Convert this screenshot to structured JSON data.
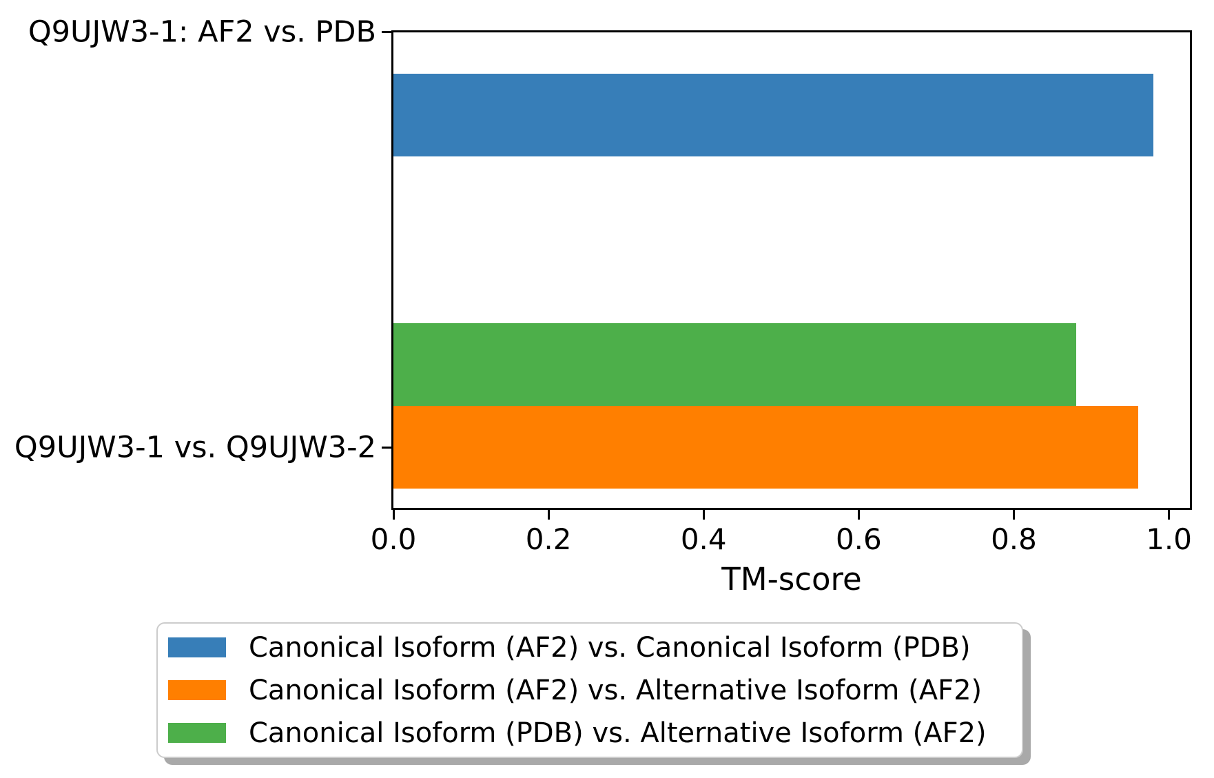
{
  "figure": {
    "background": "#ffffff",
    "axis_color": "#000000",
    "legend_border_color": "#cccccc",
    "legend_shadow_color": "#a9a9a9"
  },
  "chart_data": {
    "type": "bar",
    "orientation": "horizontal",
    "title": "",
    "xlabel": "TM-score",
    "ylabel": "",
    "categories": [
      "Q9UJW3-1: AF2 vs. PDB",
      "Q9UJW3-1 vs. Q9UJW3-2"
    ],
    "series": [
      {
        "name": "Canonical Isoform (AF2) vs. Canonical Isoform (PDB)",
        "color": "#377eb8",
        "values": [
          0.98,
          null
        ]
      },
      {
        "name": "Canonical Isoform (AF2) vs. Alternative Isoform (AF2)",
        "color": "#ff7f00",
        "values": [
          null,
          0.96
        ]
      },
      {
        "name": "Canonical Isoform (PDB) vs. Alternative Isoform (AF2)",
        "color": "#4daf4a",
        "values": [
          null,
          0.88
        ]
      }
    ],
    "xlim": [
      0,
      1.027
    ],
    "xticks": [
      0.0,
      0.2,
      0.4,
      0.6,
      0.8,
      1.0
    ],
    "xtick_labels": [
      "0.0",
      "0.2",
      "0.4",
      "0.6",
      "0.8",
      "1.0"
    ],
    "grid": false,
    "legend_position": "below-chart"
  }
}
